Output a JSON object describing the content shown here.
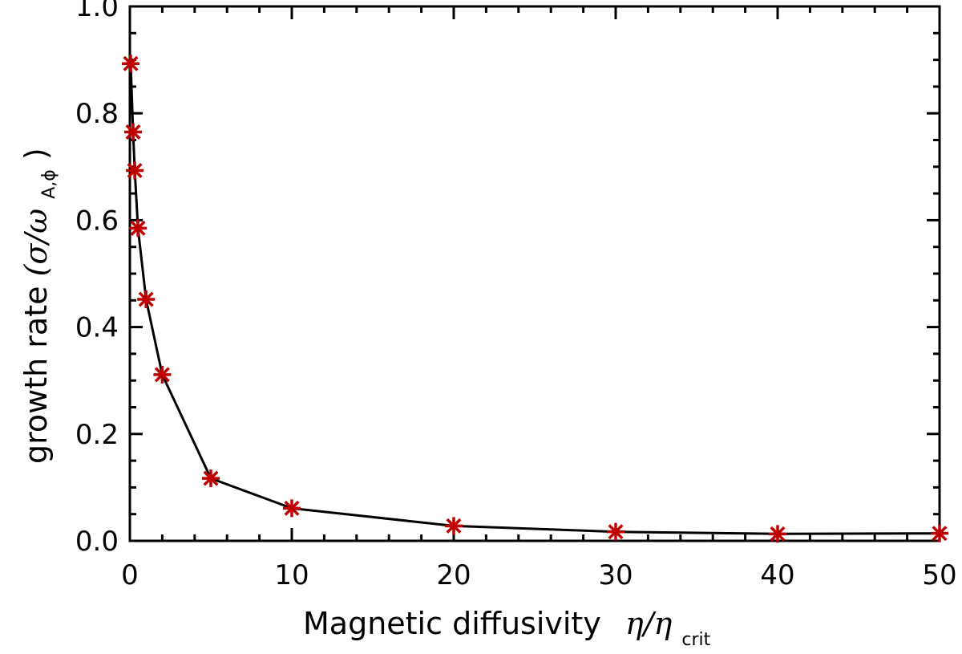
{
  "chart_data": {
    "type": "line",
    "xlabel": "Magnetic diffusivity  η/η",
    "xlabel_main": "Magnetic diffusivity",
    "xlabel_symbol": "η/η",
    "xlabel_subscript": "crit",
    "ylabel": "growth rate(σ/ω",
    "ylabel_main": "growth rate",
    "ylabel_symbol": "(σ/ω",
    "ylabel_subscript": "A,ϕ",
    "ylabel_close": ")",
    "xlim": [
      0,
      50
    ],
    "ylim": [
      0,
      1.0
    ],
    "x_ticks": [
      0,
      10,
      20,
      30,
      40,
      50
    ],
    "x_tick_labels": [
      "0",
      "10",
      "20",
      "30",
      "40",
      "50"
    ],
    "y_ticks": [
      0,
      0.2,
      0.4,
      0.6,
      0.8,
      1.0
    ],
    "y_tick_labels": [
      "0.0",
      "0.2",
      "0.4",
      "0.6",
      "0.8",
      "1.0"
    ],
    "grid": false,
    "series": [
      {
        "x": [
          0.05,
          0.2,
          0.3,
          0.5,
          1,
          2,
          5,
          10,
          20,
          30,
          40,
          50
        ],
        "y": [
          0.893,
          0.765,
          0.693,
          0.585,
          0.452,
          0.311,
          0.117,
          0.061,
          0.028,
          0.017,
          0.013,
          0.014
        ],
        "line_color": "#000000",
        "marker": "asterisk",
        "marker_color": "#c00000"
      }
    ]
  }
}
